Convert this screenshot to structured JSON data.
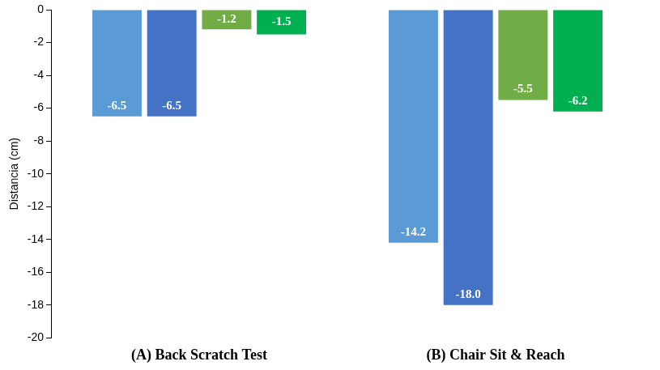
{
  "chart_data": {
    "type": "bar",
    "y_label": "Distancia (cm)",
    "categories": [
      "(A) Back Scratch Test",
      "(B) Chair Sit & Reach"
    ],
    "series": [
      {
        "color": "#5b9bd5",
        "values": [
          -6.5,
          -14.2
        ]
      },
      {
        "color": "#4472c4",
        "values": [
          -6.5,
          -18.0
        ],
        "value_labels": [
          "-6.5",
          "-18.0"
        ]
      },
      {
        "color": "#70ad47",
        "values": [
          -1.2,
          -5.5
        ]
      },
      {
        "color": "#00b050",
        "values": [
          -1.5,
          -6.2
        ]
      }
    ],
    "ylim": [
      -20,
      0
    ],
    "yticks": [
      -20,
      -18,
      -16,
      -14,
      -12,
      -10,
      -8,
      -6,
      -4,
      -2,
      0
    ],
    "grid": false,
    "data_labels": true
  }
}
